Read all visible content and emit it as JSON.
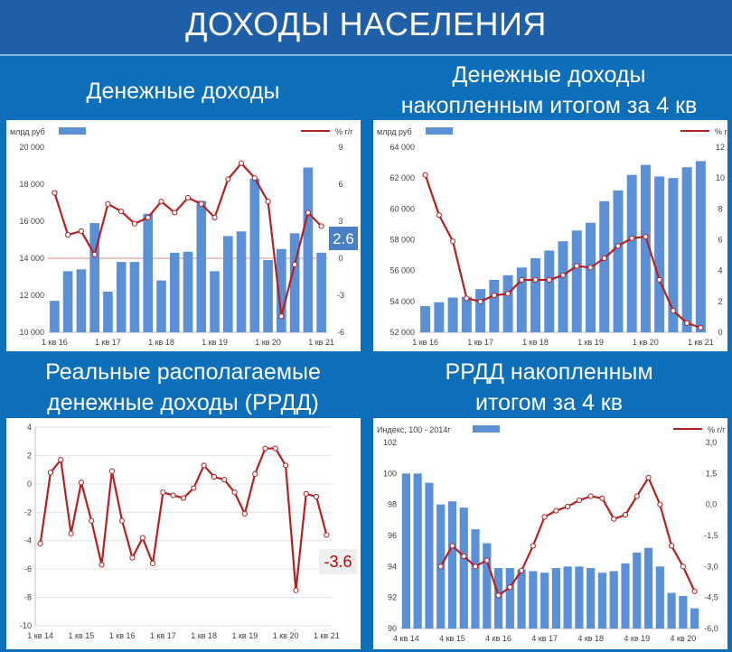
{
  "banner": {
    "title": "ДОХОДЫ НАСЕЛЕНИЯ"
  },
  "titles": {
    "q1": [
      "Денежные доходы"
    ],
    "q2": [
      "Денежные доходы",
      "накопленным итогом за 4 кв"
    ],
    "q3": [
      "Реальные располагаемые",
      "денежные доходы (РРДД)"
    ],
    "q4": [
      "РРДД накопленным",
      "итогом за 4 кв"
    ]
  },
  "colors": {
    "bar": "#5B8FD6",
    "line": "#B22222",
    "marker_fill": "#FFFFFF",
    "ref_line": "#E88888",
    "callout_blue": "#4A7FC4",
    "callout_red_text": "#C00000",
    "callout_red_bg": "#EFEFEF",
    "background": "#0D6FBA"
  },
  "chart_data": [
    {
      "type": "bar+line",
      "legend": {
        "left": "млрд руб",
        "right": "% г/г"
      },
      "y_left": {
        "min": 10000,
        "max": 20000,
        "ticks": [
          "10 000",
          "12 000",
          "14 000",
          "16 000",
          "18 000",
          "20 000"
        ]
      },
      "y_right": {
        "min": -6,
        "max": 9,
        "ticks": [
          "-6",
          "-3",
          "0",
          "3",
          "6",
          "9"
        ]
      },
      "x_labels": [
        {
          "i": 0,
          "label": "1 кв 16"
        },
        {
          "i": 4,
          "label": "1 кв 17"
        },
        {
          "i": 8,
          "label": "1 кв 18"
        },
        {
          "i": 12,
          "label": "1 кв 19"
        },
        {
          "i": 16,
          "label": "1 кв 20"
        },
        {
          "i": 20,
          "label": "1 кв 21"
        }
      ],
      "bars": [
        11700,
        13300,
        13400,
        15900,
        12200,
        13800,
        13800,
        16400,
        12800,
        14300,
        14350,
        17100,
        13300,
        15200,
        15450,
        18300,
        13900,
        14500,
        15350,
        18900,
        14300
      ],
      "line": [
        5.3,
        1.9,
        2.2,
        0.3,
        4.4,
        3.8,
        2.8,
        3.3,
        4.6,
        3.7,
        4.9,
        4.4,
        3.3,
        6.4,
        7.7,
        6.5,
        4.6,
        -4.7,
        -0.5,
        3.7,
        2.6
      ],
      "callout": "2.6"
    },
    {
      "type": "bar+line",
      "legend": {
        "left": "млрд руб",
        "right": "% г/г"
      },
      "y_left": {
        "min": 52000,
        "max": 64000,
        "ticks": [
          "52 000",
          "54 000",
          "56 000",
          "58 000",
          "60 000",
          "62 000",
          "64 000"
        ]
      },
      "y_right": {
        "min": 0,
        "max": 12,
        "ticks": [
          "0",
          "2",
          "4",
          "6",
          "8",
          "10",
          "12"
        ]
      },
      "x_labels": [
        {
          "i": 0,
          "label": "1 кв 16"
        },
        {
          "i": 4,
          "label": "1 кв 17"
        },
        {
          "i": 8,
          "label": "1 кв 18"
        },
        {
          "i": 12,
          "label": "1 кв 19"
        },
        {
          "i": 16,
          "label": "1 кв 20"
        },
        {
          "i": 20,
          "label": "1 кв 21"
        }
      ],
      "bars": [
        53700,
        53950,
        54250,
        54300,
        54800,
        55400,
        55700,
        56200,
        56800,
        57300,
        57900,
        58600,
        59100,
        60500,
        61200,
        62200,
        62850,
        62100,
        62000,
        62700,
        63100
      ],
      "line": [
        10.2,
        7.6,
        5.9,
        2.2,
        2.0,
        2.4,
        2.5,
        3.4,
        3.4,
        3.4,
        3.7,
        4.3,
        4.2,
        4.8,
        5.6,
        6.1,
        6.2,
        3.4,
        1.4,
        0.6,
        0.3
      ]
    },
    {
      "type": "line",
      "y": {
        "min": -10,
        "max": 4,
        "ticks": [
          "-10",
          "-8",
          "-6",
          "-4",
          "-2",
          "0",
          "2",
          "4"
        ]
      },
      "x_labels": [
        {
          "i": 0,
          "label": "1 кв 14"
        },
        {
          "i": 4,
          "label": "1 кв 15"
        },
        {
          "i": 8,
          "label": "1 кв 16"
        },
        {
          "i": 12,
          "label": "1 кв 17"
        },
        {
          "i": 16,
          "label": "1 кв 18"
        },
        {
          "i": 20,
          "label": "1 кв 19"
        },
        {
          "i": 24,
          "label": "1 кв 20"
        },
        {
          "i": 28,
          "label": "1 кв 21"
        }
      ],
      "line": [
        -4.2,
        0.8,
        1.7,
        -3.5,
        0.1,
        -2.6,
        -5.7,
        0.9,
        -2.6,
        -5.2,
        -3.8,
        -5.6,
        -0.6,
        -0.8,
        -1.0,
        -0.3,
        1.3,
        0.5,
        0.3,
        -0.6,
        -2.1,
        0.7,
        2.5,
        2.5,
        1.3,
        -7.5,
        -0.7,
        -0.9,
        -3.6
      ],
      "callout": "-3.6"
    },
    {
      "type": "bar+line",
      "legend": {
        "left": "Индекс, 100 - 2014г",
        "right": "% г/г"
      },
      "y_left": {
        "min": 90,
        "max": 102,
        "ticks": [
          "90",
          "92",
          "94",
          "96",
          "98",
          "100",
          "102"
        ]
      },
      "y_right": {
        "min": -6,
        "max": 3,
        "ticks": [
          "-6,0",
          "-4,5",
          "-3,0",
          "-1,5",
          "0,0",
          "1,5",
          "3,0"
        ]
      },
      "x_labels": [
        {
          "i": 0,
          "label": "4 кв 14"
        },
        {
          "i": 4,
          "label": "4 кв 15"
        },
        {
          "i": 8,
          "label": "4 кв 16"
        },
        {
          "i": 12,
          "label": "4 кв 17"
        },
        {
          "i": 16,
          "label": "4 кв 18"
        },
        {
          "i": 20,
          "label": "4 кв 19"
        },
        {
          "i": 24,
          "label": "4 кв 20"
        }
      ],
      "bars": [
        100.0,
        100.0,
        99.4,
        98.0,
        98.2,
        97.8,
        96.4,
        95.5,
        93.9,
        93.9,
        93.8,
        93.7,
        93.6,
        93.9,
        94.0,
        94.0,
        93.9,
        93.6,
        93.7,
        94.2,
        94.9,
        95.2,
        94.0,
        92.3,
        92.1,
        91.3
      ],
      "line": [
        null,
        null,
        null,
        -3.0,
        -2.0,
        -2.5,
        -3.0,
        -2.7,
        -4.4,
        -4.0,
        -3.2,
        -2.0,
        -0.6,
        -0.3,
        -0.1,
        0.2,
        0.4,
        0.3,
        -0.7,
        -0.5,
        0.4,
        1.3,
        0.0,
        -2.0,
        -3.0,
        -4.2
      ]
    }
  ]
}
